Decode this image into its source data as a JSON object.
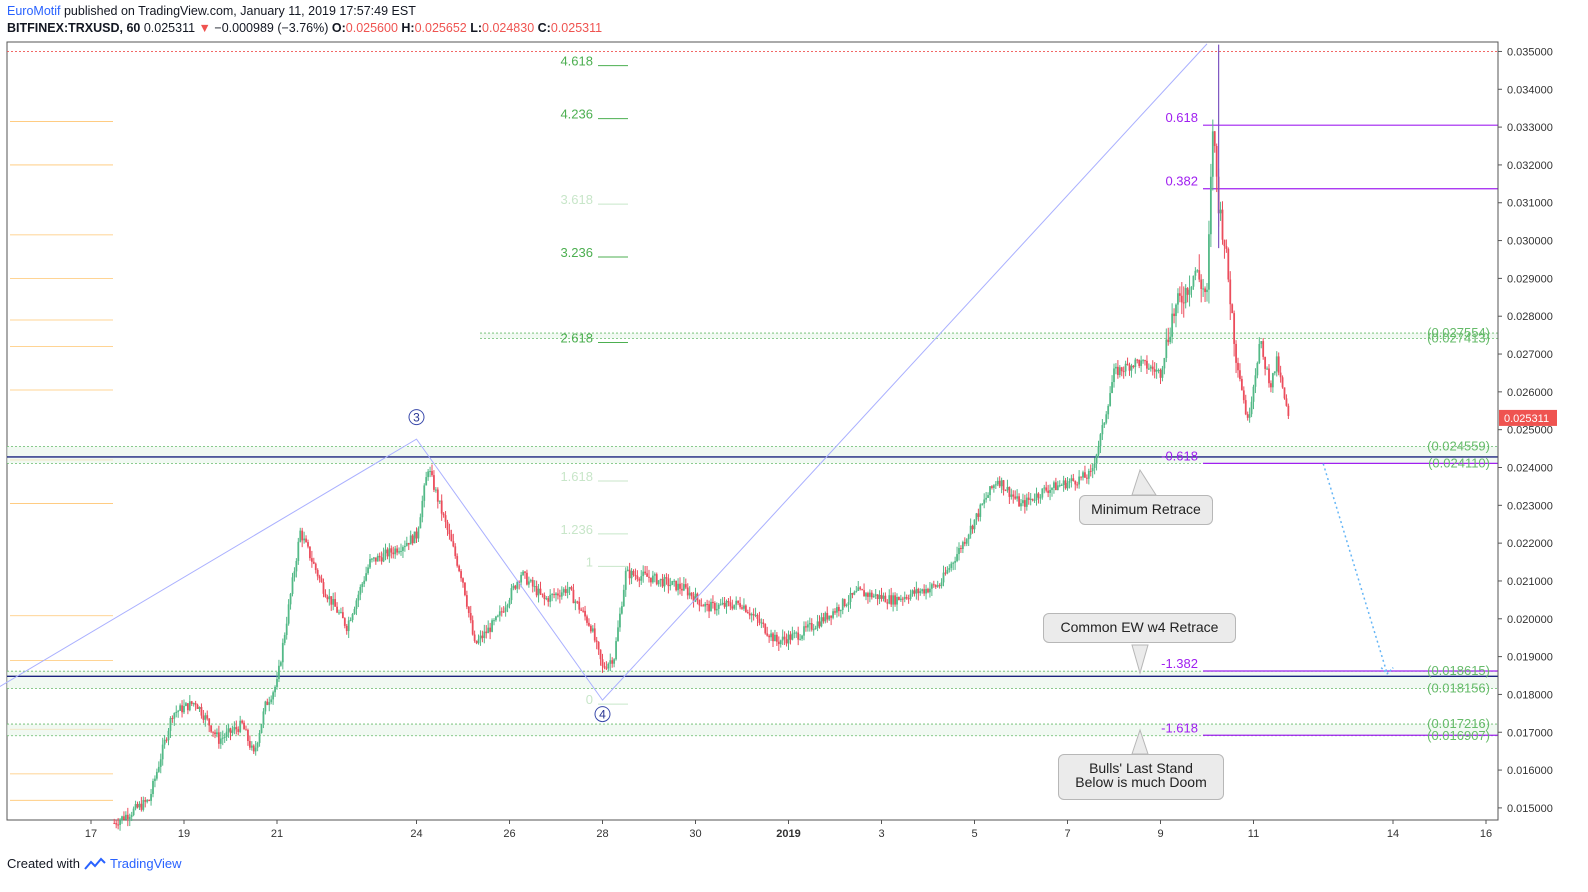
{
  "header": {
    "author": "EuroMotif",
    "published_text": "published on TradingView.com, January 11, 2019 17:57:49 EST",
    "symbol": "BITFINEX:TRXUSD, 60",
    "last_price": "0.025311",
    "change_arrow": "▼",
    "change": "−0.000989 (−3.76%)",
    "o_label": "O:",
    "o_value": "0.025600",
    "h_label": "H:",
    "h_value": "0.025652",
    "l_label": "L:",
    "l_value": "0.024830",
    "c_label": "C:",
    "c_value": "0.025311"
  },
  "footer": {
    "created_with": "Created with",
    "brand": "TradingView"
  },
  "colors": {
    "up": "#53b987",
    "down": "#eb4d5c",
    "price_tag": "#ef5350",
    "fib_green": "#4caf50",
    "purple": "#a020f0",
    "navy": "#1a237e",
    "wave_line": "#aab0ff",
    "orange": "#ffb74d"
  },
  "chart_data": {
    "type": "candlestick",
    "title": "",
    "x_ticks": [
      "17",
      "19",
      "21",
      "24",
      "26",
      "28",
      "30",
      "2019",
      "3",
      "5",
      "7",
      "9",
      "11",
      "14",
      "16"
    ],
    "y_ticks": [
      "0.035000",
      "0.034000",
      "0.033000",
      "0.032000",
      "0.031000",
      "0.030000",
      "0.029000",
      "0.028000",
      "0.027000",
      "0.026000",
      "0.025000",
      "0.024000",
      "0.023000",
      "0.022000",
      "0.021000",
      "0.020000",
      "0.019000",
      "0.018000",
      "0.017000",
      "0.016000",
      "0.015000"
    ],
    "ylim": [
      0.01468,
      0.03525
    ],
    "current_price_label": "0.025311",
    "current_price": 0.025311,
    "price_path": [
      [
        "Dec 17 12:00",
        0.0146
      ],
      [
        "Dec 18 06:00",
        0.0152
      ],
      [
        "Dec 18 18:00",
        0.0175
      ],
      [
        "Dec 19 06:00",
        0.0178
      ],
      [
        "Dec 19 18:00",
        0.0168
      ],
      [
        "Dec 20 06:00",
        0.0172
      ],
      [
        "Dec 20 12:00",
        0.0164
      ],
      [
        "Dec 20 18:00",
        0.0177
      ],
      [
        "Dec 21 00:00",
        0.0183
      ],
      [
        "Dec 21 12:00",
        0.0223
      ],
      [
        "Dec 22 00:00",
        0.0208
      ],
      [
        "Dec 22 12:00",
        0.0198
      ],
      [
        "Dec 23 00:00",
        0.0215
      ],
      [
        "Dec 23 12:00",
        0.0218
      ],
      [
        "Dec 24 00:00",
        0.0222
      ],
      [
        "Dec 24 06:00",
        0.024
      ],
      [
        "Dec 24 12:00",
        0.023
      ],
      [
        "Dec 25 00:00",
        0.021
      ],
      [
        "Dec 25 06:00",
        0.0193
      ],
      [
        "Dec 25 18:00",
        0.02
      ],
      [
        "Dec 26 06:00",
        0.0212
      ],
      [
        "Dec 26 18:00",
        0.0205
      ],
      [
        "Dec 27 06:00",
        0.0208
      ],
      [
        "Dec 27 18:00",
        0.0198
      ],
      [
        "Dec 28 00:00",
        0.0187
      ],
      [
        "Dec 28 06:00",
        0.019
      ],
      [
        "Dec 28 12:00",
        0.0212
      ],
      [
        "Dec 29 00:00",
        0.0211
      ],
      [
        "Dec 29 18:00",
        0.0208
      ],
      [
        "Dec 30 06:00",
        0.0203
      ],
      [
        "Dec 31 00:00",
        0.0204
      ],
      [
        "Dec 31 18:00",
        0.0194
      ],
      [
        "Jan 1 06:00",
        0.0196
      ],
      [
        "Jan 1 18:00",
        0.02
      ],
      [
        "Jan 2 12:00",
        0.0207
      ],
      [
        "Jan 3 06:00",
        0.0205
      ],
      [
        "Jan 3 18:00",
        0.0207
      ],
      [
        "Jan 4 06:00",
        0.0209
      ],
      [
        "Jan 4 18:00",
        0.022
      ],
      [
        "Jan 5 06:00",
        0.0232
      ],
      [
        "Jan 5 12:00",
        0.0237
      ],
      [
        "Jan 6 00:00",
        0.023
      ],
      [
        "Jan 6 12:00",
        0.0234
      ],
      [
        "Jan 7 00:00",
        0.0236
      ],
      [
        "Jan 7 12:00",
        0.0238
      ],
      [
        "Jan 7 18:00",
        0.025
      ],
      [
        "Jan 8 00:00",
        0.0265
      ],
      [
        "Jan 8 12:00",
        0.0268
      ],
      [
        "Jan 9 00:00",
        0.0265
      ],
      [
        "Jan 9 06:00",
        0.028
      ],
      [
        "Jan 9 18:00",
        0.0292
      ],
      [
        "Jan 10 00:00",
        0.0285
      ],
      [
        "Jan 10 03:00",
        0.033
      ],
      [
        "Jan 10 06:00",
        0.031
      ],
      [
        "Jan 10 09:00",
        0.03
      ],
      [
        "Jan 10 15:00",
        0.027
      ],
      [
        "Jan 10 21:00",
        0.0252
      ],
      [
        "Jan 11 03:00",
        0.0272
      ],
      [
        "Jan 11 09:00",
        0.0262
      ],
      [
        "Jan 11 12:00",
        0.0268
      ],
      [
        "Jan 11 18:00",
        0.0253
      ]
    ],
    "swing_high": {
      "time": "Jan 10 06:00",
      "price": 0.03518
    },
    "wave_labels": [
      {
        "label": "3",
        "time": "Dec 24 00:00",
        "price": 0.02475
      },
      {
        "label": "4",
        "time": "Dec 28 00:00",
        "price": 0.01785
      }
    ],
    "wave_path": [
      [
        "Dec 15 00:00",
        0.01818
      ],
      [
        "Dec 24 00:00",
        0.02475
      ],
      [
        "Dec 28 00:00",
        0.01785
      ],
      [
        "Jan 10 00:00",
        0.0352
      ]
    ],
    "fib_extension_labels": [
      {
        "label": "4.618",
        "price": 0.03473,
        "faded": false
      },
      {
        "label": "4.236",
        "price": 0.03333,
        "faded": false
      },
      {
        "label": "3.618",
        "price": 0.03107,
        "faded": true
      },
      {
        "label": "3.236",
        "price": 0.02967,
        "faded": false
      },
      {
        "label": "2.618",
        "price": 0.02741,
        "faded": false
      },
      {
        "label": "1.618",
        "price": 0.02375,
        "faded": true
      },
      {
        "label": "1.236",
        "price": 0.02235,
        "faded": true
      },
      {
        "label": "1",
        "price": 0.02149,
        "faded": true
      },
      {
        "label": "0",
        "price": 0.01785,
        "faded": true
      }
    ],
    "fib_retrace_levels": [
      {
        "label": "0.618",
        "price": 0.03305
      },
      {
        "label": "0.382",
        "price": 0.03137
      },
      {
        "label": "-0.618",
        "price": 0.02411
      },
      {
        "label": "-1.382",
        "price": 0.01862
      },
      {
        "label": "-1.618",
        "price": 0.01692
      }
    ],
    "zone_labels": [
      {
        "label": "(0.027554)",
        "price": 0.027554
      },
      {
        "label": "(0.027413)",
        "price": 0.027413
      },
      {
        "label": "(0.024559)",
        "price": 0.024559
      },
      {
        "label": "(0.024110)",
        "price": 0.02411
      },
      {
        "label": "(0.018615)",
        "price": 0.018615
      },
      {
        "label": "(0.018156)",
        "price": 0.018156
      },
      {
        "label": "(0.017216)",
        "price": 0.017216
      },
      {
        "label": "(0.016907)",
        "price": 0.016907
      }
    ],
    "horizontal_lines": [
      {
        "price": 0.02428,
        "color": "navy"
      },
      {
        "price": 0.01848,
        "color": "navy"
      },
      {
        "price": 0.035,
        "color": "red-dotted"
      }
    ],
    "orange_levels": [
      0.03315,
      0.032,
      0.03015,
      0.029,
      0.0279,
      0.0272,
      0.02605,
      0.0242,
      0.02305,
      0.02008,
      0.0189,
      0.01708,
      0.0159,
      0.0152
    ],
    "projection": {
      "from": [
        "Jan 12 12:00",
        0.0241
      ],
      "to": [
        "Jan 13 21:00",
        0.01855
      ]
    }
  },
  "annotations": {
    "minimum_retrace": "Minimum Retrace",
    "common_ew": "Common EW w4 Retrace",
    "bulls_line1": "Bulls' Last Stand",
    "bulls_line2": "Below is much Doom"
  }
}
